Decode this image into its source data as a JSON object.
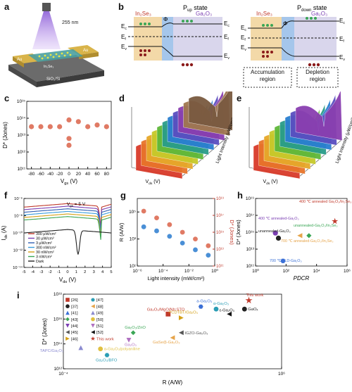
{
  "panels": {
    "a": {
      "label": "a",
      "wavelength": "255 nm",
      "electrode1": "Au",
      "electrode2": "Au",
      "substrate": "SiO₂/Si",
      "layer": "In₂Se₃"
    },
    "b": {
      "label": "b",
      "pup_title": "P",
      "pup_sub": "up",
      "pup_suffix": " state",
      "pdown_title": "P",
      "pdown_sub": "down",
      "pdown_suffix": " state",
      "mat1": "In₂Se₃",
      "mat2": "Ga₂O₃",
      "Ec": "E",
      "Ec_sub": "c",
      "Ef": "E",
      "Ef_sub": "f",
      "Ev": "E",
      "Ev_sub": "v",
      "phi": "Φ",
      "accumulation": "Accumulation region",
      "depletion": "Depletion region"
    },
    "c": {
      "label": "c",
      "ylabel": "D* (Jones)",
      "xlabel": "V",
      "xlabel_sub": "gs",
      "xlabel_unit": " (V)"
    },
    "d": {
      "label": "d",
      "xlabel": "V",
      "xlabel_sub": "ds",
      "xlabel_unit": " (V)",
      "zlabel": "D* (Jones)",
      "ylabel": "Light Intensity (μW/cm²)"
    },
    "e": {
      "label": "e",
      "xlabel": "V",
      "xlabel_sub": "ds",
      "xlabel_unit": " (V)",
      "zlabel": "D* (Jones)",
      "ylabel": "Light Intensity (μW/cm²)"
    },
    "f": {
      "label": "f",
      "annotation": "V",
      "annotation_sub": "gs",
      "annotation_val": " = 5 V",
      "ylabel": "I",
      "ylabel_sub": "ds",
      "ylabel_unit": " (A)",
      "xlabel": "V",
      "xlabel_sub": "ds",
      "xlabel_unit": " (V)"
    },
    "g": {
      "label": "g",
      "ylabel_left": "R (A/W)",
      "ylabel_right": "D* (Jones)",
      "xlabel": "Light intensity (mW/cm²)"
    },
    "h": {
      "label": "h",
      "ylabel": "D* (Jones)",
      "xlabel": "PDCR"
    },
    "i": {
      "label": "i",
      "ylabel": "D* (Jones)",
      "xlabel": "R (A/W)"
    }
  },
  "chart_data": [
    {
      "id": "c",
      "type": "scatter",
      "xlabel": "Vgs (V)",
      "ylabel": "D* (Jones)",
      "xlim": [
        -90,
        90
      ],
      "ylim_log": [
        11,
        15
      ],
      "xticks": [
        "-80",
        "-60",
        "-40",
        "-20",
        "0",
        "20",
        "40",
        "60",
        "80"
      ],
      "yticks": [
        "10¹¹",
        "10¹²",
        "10¹³",
        "10¹⁴",
        "10¹⁵"
      ],
      "x": [
        -80,
        -60,
        -40,
        -20,
        0,
        0,
        0,
        20,
        40,
        60,
        80
      ],
      "y_log": [
        13.5,
        13.5,
        13.5,
        13.5,
        12.8,
        12.4,
        13.9,
        13.8,
        13.5,
        13.6,
        13.5
      ],
      "color": "#e07a64"
    },
    {
      "id": "f",
      "type": "line",
      "xlabel": "Vds (V)",
      "ylabel": "Ids (A)",
      "xlim": [
        -5,
        5
      ],
      "ylim_log": [
        -14,
        -6
      ],
      "xticks": [
        "-5",
        "-4",
        "-3",
        "-2",
        "-1",
        "0",
        "1",
        "2",
        "3",
        "4",
        "5"
      ],
      "yticks": [
        "10⁻¹⁴",
        "10⁻¹²",
        "10⁻¹⁰",
        "10⁻⁸",
        "10⁻⁶"
      ],
      "series": [
        {
          "name": "300 μW/cm²",
          "color": "#c0392b",
          "level": -6.6
        },
        {
          "name": "30 μW/cm²",
          "color": "#7b3fb3",
          "level": -6.9
        },
        {
          "name": "3 μW/cm²",
          "color": "#2f5fb3",
          "level": -7.2
        },
        {
          "name": "300 nW/cm²",
          "color": "#3a9bdc",
          "level": -7.5
        },
        {
          "name": "30 nW/cm²",
          "color": "#d4a017",
          "level": -7.8
        },
        {
          "name": "3 nW/cm²",
          "color": "#3aa655",
          "level": -8.1
        },
        {
          "name": "Dark",
          "color": "#222222",
          "level": -9.6
        }
      ]
    },
    {
      "id": "g",
      "type": "scatter",
      "xlabel": "Light intensity (mW/cm²)",
      "ylabel": "R (A/W)",
      "ylabel_right": "D* (Jones)",
      "xlim_log": [
        -6,
        0
      ],
      "ylim_log": [
        1,
        6
      ],
      "ylim_right_log": [
        11,
        19
      ],
      "xticks": [
        "10⁻⁶",
        "10⁻⁴",
        "10⁻²",
        "10⁰"
      ],
      "yticks": [
        "10¹",
        "10³",
        "10⁵"
      ],
      "yticks_right": [
        "10¹¹",
        "10¹³",
        "10¹⁵",
        "10¹⁷",
        "10¹⁹"
      ],
      "series": [
        {
          "name": "R",
          "color": "#4a8fd6",
          "x_log": [
            -5.5,
            -4.5,
            -3.5,
            -2.5,
            -1.5,
            -0.5
          ],
          "y_log": [
            3.9,
            3.6,
            3.2,
            2.7,
            2.2,
            1.8
          ]
        },
        {
          "name": "D*",
          "color": "#e07a64",
          "x_log": [
            -5.5,
            -4.5,
            -3.5,
            -2.5,
            -1.5,
            -0.5
          ],
          "y_log": [
            17.5,
            16.7,
            15.9,
            15.0,
            14.2,
            13.4
          ]
        }
      ]
    },
    {
      "id": "h",
      "type": "scatter",
      "xlabel": "PDCR",
      "ylabel": "D* (Jones)",
      "xlim_log": [
        0,
        6
      ],
      "ylim_log": [
        11,
        19
      ],
      "xticks": [
        "10⁰",
        "10²",
        "10⁴",
        "10⁶"
      ],
      "yticks": [
        "10¹¹",
        "10¹³",
        "10¹⁵",
        "10¹⁷",
        "10¹⁹"
      ],
      "points": [
        {
          "label": "400 ℃ annealed Ga₂O₃/In₂Se₃",
          "x_log": 5.2,
          "y_log": 16.3,
          "color": "#c0392b",
          "marker": "star"
        },
        {
          "label": "400 ℃ annealed-Ga₂O₃",
          "x_log": 1.3,
          "y_log": 14.9,
          "color": "#7b3fb3",
          "marker": "circle"
        },
        {
          "label": "unannealed-Ga₂O₃/In₂Se₃",
          "x_log": 3.5,
          "y_log": 14.6,
          "color": "#3aa655",
          "marker": "diamond"
        },
        {
          "label": "unannealed-Ga₂O₃",
          "x_log": 1.5,
          "y_log": 14.3,
          "color": "#222222",
          "marker": "circle"
        },
        {
          "label": "700 ℃ annealed-Ga₂O₃/In₂Se₃",
          "x_log": 2.9,
          "y_log": 14.6,
          "color": "#e6a44a",
          "marker": "triangle-left"
        },
        {
          "label": "700 ℃ ALD-Ga₂O₃",
          "x_log": 1.8,
          "y_log": 11.6,
          "color": "#3a6fd6",
          "marker": "hexagon"
        }
      ]
    },
    {
      "id": "i",
      "type": "scatter",
      "xlabel": "R (A/W)",
      "ylabel": "D* (Jones)",
      "xlim_log": [
        -4,
        6
      ],
      "ylim_log": [
        12,
        18
      ],
      "xticks": [
        "10⁻⁴",
        "10⁶"
      ],
      "yticks": [
        "10¹²",
        "10¹⁴",
        "10¹⁶",
        "10¹⁸"
      ],
      "legend": [
        {
          "ref": "[26]",
          "color": "#c0392b",
          "marker": "square"
        },
        {
          "ref": "[37]",
          "color": "#222222",
          "marker": "circle"
        },
        {
          "ref": "[41]",
          "color": "#3a6fd6",
          "marker": "triangle-up"
        },
        {
          "ref": "[43]",
          "color": "#3aa655",
          "marker": "diamond"
        },
        {
          "ref": "[44]",
          "color": "#7b3fb3",
          "marker": "triangle-down"
        },
        {
          "ref": "[45]",
          "color": "#555555",
          "marker": "triangle-left"
        },
        {
          "ref": "[46]",
          "color": "#d4a017",
          "marker": "triangle-right"
        },
        {
          "ref": "[47]",
          "color": "#2a9db5",
          "marker": "hexagon"
        },
        {
          "ref": "[48]",
          "color": "#e6a44a",
          "marker": "triangle-left"
        },
        {
          "ref": "[49]",
          "color": "#8a8ad0",
          "marker": "triangle-up"
        },
        {
          "ref": "[50]",
          "color": "#e0c040",
          "marker": "circle"
        },
        {
          "ref": "[51]",
          "color": "#b070c0",
          "marker": "triangle-down"
        },
        {
          "ref": "[52]",
          "color": "#111111",
          "marker": "triangle-left"
        },
        {
          "ref": "This work",
          "color": "#c0392b",
          "marker": "star"
        }
      ],
      "points": [
        {
          "label": "This work",
          "x_log": 4.5,
          "y_log": 17.5,
          "color": "#c0392b",
          "marker": "star"
        },
        {
          "label": "GaOₓ",
          "x_log": 4.3,
          "y_log": 16.8,
          "color": "#222222",
          "marker": "circle"
        },
        {
          "label": "ε-Ga₂O₃",
          "x_log": 3.6,
          "y_log": 16.4,
          "color": "#111111",
          "marker": "triangle-left"
        },
        {
          "label": "α-Ga₂O₃",
          "x_log": 3.0,
          "y_log": 16.8,
          "color": "#2a9db5",
          "marker": "circle"
        },
        {
          "label": "a-Ga₂O₃",
          "x_log": 2.3,
          "y_log": 17.0,
          "color": "#3a6fd6",
          "marker": "hexagon"
        },
        {
          "label": "Ga₂O₃/MgO/Nb:STO",
          "x_log": 0.8,
          "y_log": 16.4,
          "color": "#c0392b",
          "marker": "square"
        },
        {
          "label": "PCDTBT/Ga₂O₃",
          "x_log": 1.4,
          "y_log": 16.1,
          "color": "#d4a017",
          "marker": "triangle-right"
        },
        {
          "label": "IGZO-Ga₂O₃",
          "x_log": 1.4,
          "y_log": 14.9,
          "color": "#555555",
          "marker": "triangle-left"
        },
        {
          "label": "GaSe/β-Ga₂O₃",
          "x_log": 1.0,
          "y_log": 14.5,
          "color": "#e6a44a",
          "marker": "triangle-left"
        },
        {
          "label": "Ga₂O₃/ZnO",
          "x_log": -0.8,
          "y_log": 14.9,
          "color": "#3aa655",
          "marker": "diamond"
        },
        {
          "label": "Ga₂O₃",
          "x_log": -1.0,
          "y_log": 14.3,
          "color": "#b070c0",
          "marker": "triangle-down"
        },
        {
          "label": "TAPC/Ga₂O₃",
          "x_log": -3.2,
          "y_log": 13.7,
          "color": "#8a8ad0",
          "marker": "triangle-up"
        },
        {
          "label": "α-Ga₂O₃/polyaniline",
          "x_log": -2.3,
          "y_log": 13.6,
          "color": "#e0c040",
          "marker": "circle"
        },
        {
          "label": "Ga₂O₃/BFO",
          "x_log": -2.0,
          "y_log": 13.1,
          "color": "#2a9db5",
          "marker": "hexagon"
        }
      ]
    }
  ]
}
